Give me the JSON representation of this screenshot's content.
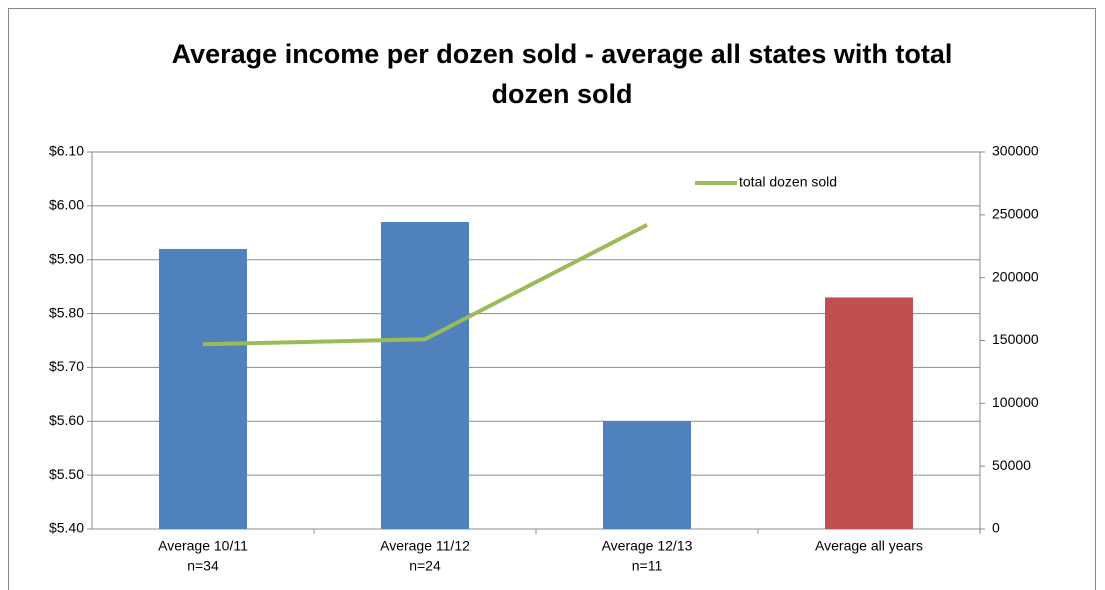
{
  "chart_data": {
    "type": "bar",
    "title": "Average income per dozen sold - average all states with total dozen sold",
    "categories": [
      [
        "Average 10/11",
        "n=34"
      ],
      [
        "Average 11/12",
        "n=24"
      ],
      [
        "Average 12/13",
        "n=11"
      ],
      [
        "Average all years"
      ]
    ],
    "series": [
      {
        "type": "bar",
        "colors": [
          "#4f81bd",
          "#4f81bd",
          "#4f81bd",
          "#c0504d"
        ],
        "values": [
          5.92,
          5.97,
          5.6,
          5.83
        ]
      },
      {
        "type": "line",
        "name": "total dozen sold",
        "color": "#9bbb59",
        "axis": "y2",
        "values": [
          147000,
          151000,
          242000,
          null
        ]
      }
    ],
    "ylim": [
      5.4,
      6.1
    ],
    "yticks": [
      {
        "value": 5.4,
        "label": "$5.40"
      },
      {
        "value": 5.5,
        "label": "$5.50"
      },
      {
        "value": 5.6,
        "label": "$5.60"
      },
      {
        "value": 5.7,
        "label": "$5.70"
      },
      {
        "value": 5.8,
        "label": "$5.80"
      },
      {
        "value": 5.9,
        "label": "$5.90"
      },
      {
        "value": 6.0,
        "label": "$6.00"
      },
      {
        "value": 6.1,
        "label": "$6.10"
      }
    ],
    "y2lim": [
      0,
      300000
    ],
    "y2ticks": [
      0,
      50000,
      100000,
      150000,
      200000,
      250000,
      300000
    ],
    "grid": true,
    "legend": "upper right"
  }
}
